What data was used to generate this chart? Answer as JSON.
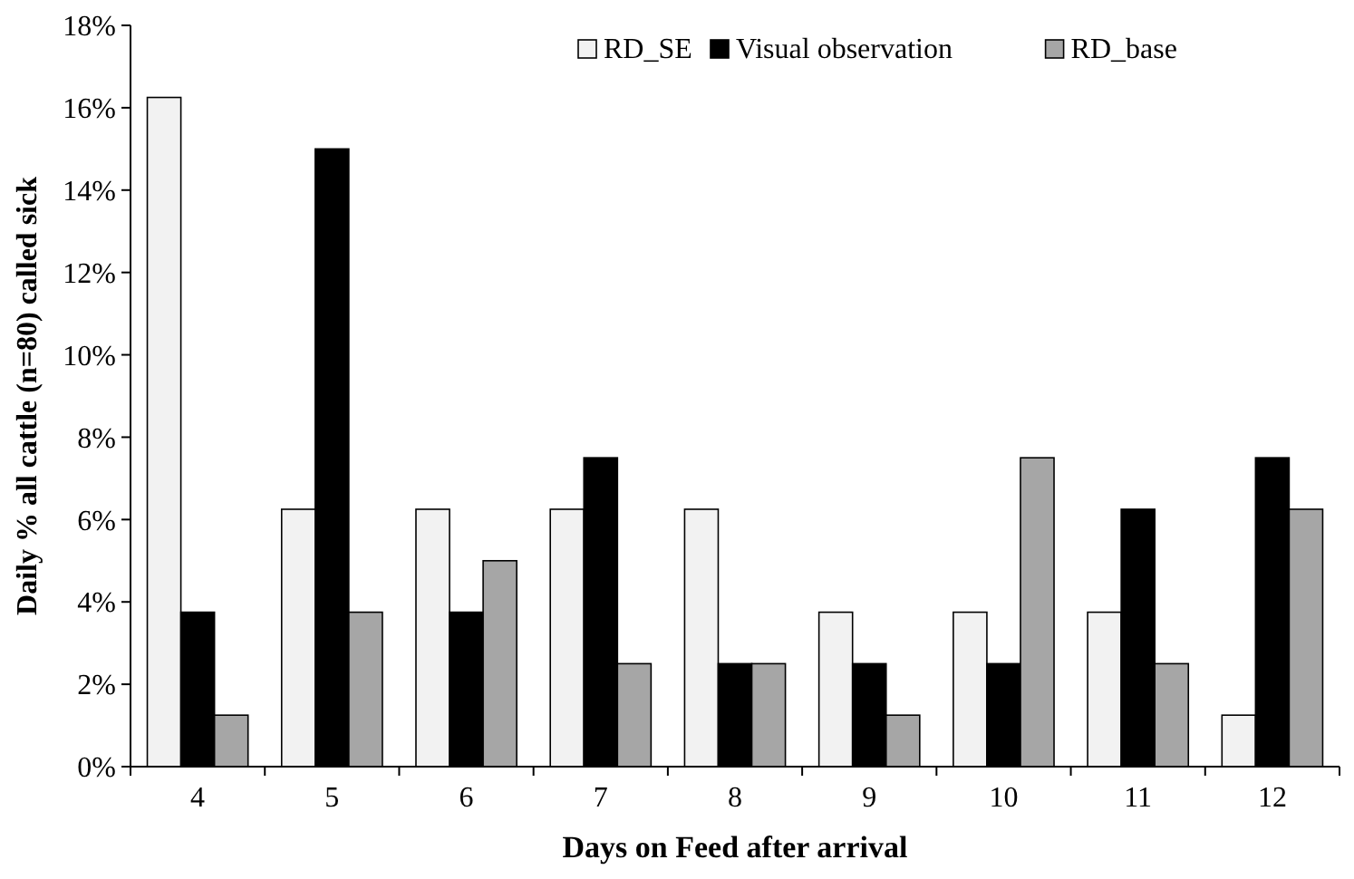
{
  "chart_data": {
    "type": "bar",
    "xlabel": "Days on Feed after arrival",
    "ylabel": "Daily % all cattle (n=80) called sick",
    "categories": [
      "4",
      "5",
      "6",
      "7",
      "8",
      "9",
      "10",
      "11",
      "12"
    ],
    "series": [
      {
        "name": "RD_SE",
        "color": "#f2f2f2",
        "values": [
          16.25,
          6.25,
          6.25,
          6.25,
          6.25,
          3.75,
          3.75,
          3.75,
          1.25
        ]
      },
      {
        "name": "Visual observation",
        "color": "#000000",
        "values": [
          3.75,
          15,
          3.75,
          7.5,
          2.5,
          2.5,
          2.5,
          6.25,
          7.5
        ]
      },
      {
        "name": "RD_base",
        "color": "#a6a6a6",
        "values": [
          1.25,
          3.75,
          5,
          2.5,
          2.5,
          1.25,
          7.5,
          2.5,
          6.25
        ]
      }
    ],
    "ylim": [
      0,
      18
    ],
    "yticks": [
      {
        "value": 0,
        "label": "0%"
      },
      {
        "value": 2,
        "label": "2%"
      },
      {
        "value": 4,
        "label": "4%"
      },
      {
        "value": 6,
        "label": "6%"
      },
      {
        "value": 8,
        "label": "8%"
      },
      {
        "value": 10,
        "label": "10%"
      },
      {
        "value": 12,
        "label": "12%"
      },
      {
        "value": 14,
        "label": "14%"
      },
      {
        "value": 16,
        "label": "16%"
      },
      {
        "value": 18,
        "label": "18%"
      }
    ],
    "grid": false,
    "legend": "top right"
  }
}
